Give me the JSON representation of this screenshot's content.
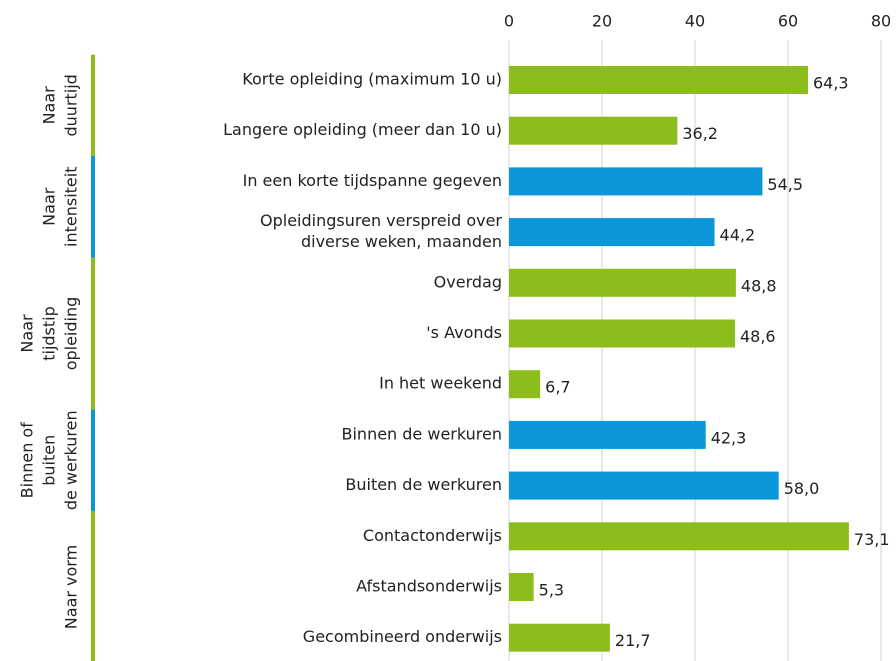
{
  "chart_data": {
    "type": "bar",
    "orientation": "horizontal",
    "xlim": [
      0,
      80
    ],
    "xticks": [
      0,
      20,
      40,
      60,
      80
    ],
    "grid": true,
    "groups": [
      {
        "label": [
          "Naar",
          "duurtijd"
        ],
        "color": "#8cbd1c",
        "categories": [
          "Korte opleiding (maximum 10 u)",
          "Langere opleiding (meer dan 10 u)"
        ],
        "values": [
          64.3,
          36.2
        ],
        "value_labels": [
          "64,3",
          "36,2"
        ]
      },
      {
        "label": [
          "Naar",
          "intensiteit"
        ],
        "color": "#0b96d9",
        "categories": [
          "In een korte tijdspanne gegeven",
          [
            "Opleidingsuren verspreid over",
            "diverse weken, maanden"
          ]
        ],
        "values": [
          54.5,
          44.2
        ],
        "value_labels": [
          "54,5",
          "44,2"
        ]
      },
      {
        "label": [
          "Naar",
          "tijdstip",
          "opleiding"
        ],
        "color": "#8cbd1c",
        "categories": [
          "Overdag",
          "'s Avonds",
          "In het weekend"
        ],
        "values": [
          48.8,
          48.6,
          6.7
        ],
        "value_labels": [
          "48,8",
          "48,6",
          "6,7"
        ]
      },
      {
        "label": [
          "Binnen of",
          "buiten",
          "de werkuren"
        ],
        "color": "#0b96d9",
        "categories": [
          "Binnen de werkuren",
          "Buiten de werkuren"
        ],
        "values": [
          42.3,
          58.0
        ],
        "value_labels": [
          "42,3",
          "58,0"
        ]
      },
      {
        "label": [
          "Naar vorm"
        ],
        "color": "#8cbd1c",
        "categories": [
          "Contactonderwijs",
          "Afstandsonderwijs",
          "Gecombineerd onderwijs"
        ],
        "values": [
          73.1,
          5.3,
          21.7
        ],
        "value_labels": [
          "73,1",
          "5,3",
          "21,7"
        ]
      }
    ]
  }
}
